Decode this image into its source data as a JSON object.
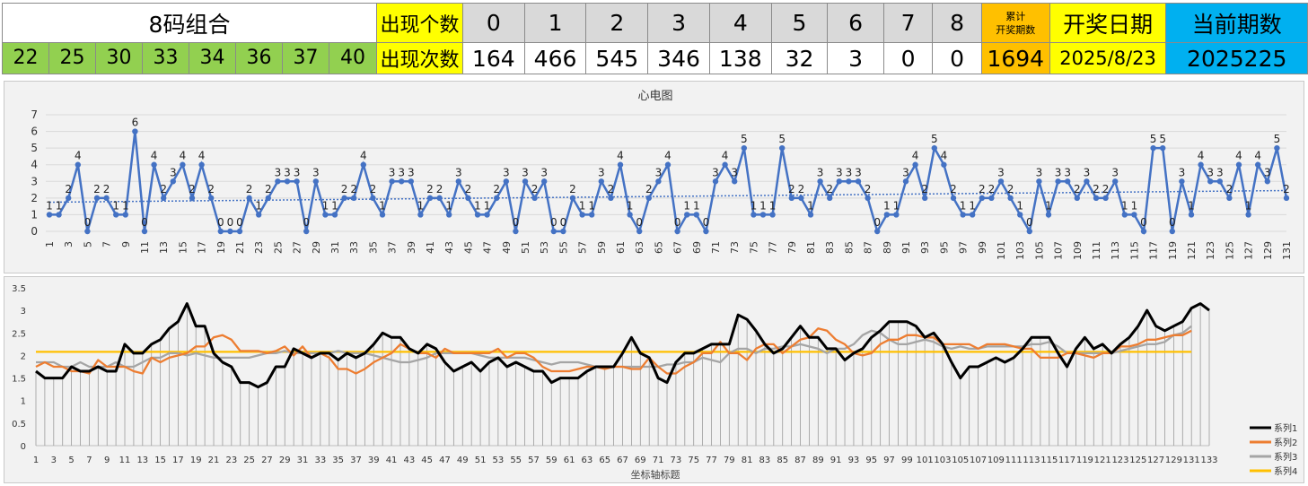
{
  "header": {
    "combo_label": "8码组合",
    "count_label": "出现个数",
    "times_label": "出现次数",
    "total_label_1": "累计",
    "total_label_2": "开奖期数",
    "date_label": "开奖日期",
    "period_label": "当前期数",
    "combo_numbers": [
      "22",
      "25",
      "30",
      "33",
      "34",
      "36",
      "37",
      "40"
    ],
    "count_headers": [
      "0",
      "1",
      "2",
      "3",
      "4",
      "5",
      "6",
      "7",
      "8"
    ],
    "times_values": [
      "164",
      "466",
      "545",
      "346",
      "138",
      "32",
      "3",
      "0",
      "0"
    ],
    "total_value": "1694",
    "date_value": "2025/8/23",
    "period_value": "2025225"
  },
  "chart_data": [
    {
      "type": "line",
      "title": "心电图",
      "x": [
        1,
        2,
        3,
        4,
        5,
        6,
        7,
        8,
        9,
        10,
        11,
        12,
        13,
        14,
        15,
        16,
        17,
        18,
        19,
        20,
        21,
        22,
        23,
        24,
        25,
        26,
        27,
        28,
        29,
        30,
        31,
        32,
        33,
        34,
        35,
        36,
        37,
        38,
        39,
        40,
        41,
        42,
        43,
        44,
        45,
        46,
        47,
        48,
        49,
        50,
        51,
        52,
        53,
        54,
        55,
        56,
        57,
        58,
        59,
        60,
        61,
        62,
        63,
        64,
        65,
        66,
        67,
        68,
        69,
        70,
        71,
        72,
        73,
        74,
        75,
        76,
        77,
        78,
        79,
        80,
        81,
        82,
        83,
        84,
        85,
        86,
        87,
        88,
        89,
        90,
        91,
        92,
        93,
        94,
        95,
        96,
        97,
        98,
        99,
        100,
        101,
        102,
        103,
        104,
        105,
        106,
        107,
        108,
        109,
        110,
        111,
        112,
        113,
        114,
        115,
        116,
        117,
        118,
        119,
        120,
        121,
        122,
        123,
        124,
        125,
        126,
        127,
        128,
        129,
        130,
        131
      ],
      "series": [
        {
          "values": [
            1,
            1,
            2,
            4,
            0,
            2,
            2,
            1,
            1,
            6,
            0,
            4,
            2,
            3,
            4,
            2,
            4,
            2,
            0,
            0,
            0,
            2,
            1,
            2,
            3,
            3,
            3,
            0,
            3,
            1,
            1,
            2,
            2,
            4,
            2,
            1,
            3,
            3,
            3,
            1,
            2,
            2,
            1,
            3,
            2,
            1,
            1,
            2,
            3,
            0,
            3,
            2,
            3,
            0,
            0,
            2,
            1,
            1,
            3,
            2,
            4,
            1,
            0,
            2,
            3,
            4,
            0,
            1,
            1,
            0,
            3,
            4,
            3,
            5,
            1,
            1,
            1,
            5,
            2,
            2,
            1,
            3,
            2,
            3,
            3,
            3,
            2,
            0,
            1,
            1,
            3,
            4,
            2,
            5,
            4,
            2,
            1,
            1,
            2,
            2,
            3,
            2,
            1,
            0,
            3,
            1,
            3,
            3,
            2,
            3,
            2,
            2,
            3,
            1,
            1,
            0,
            5,
            5,
            0,
            3,
            1,
            4,
            3,
            3,
            2,
            4,
            1,
            4,
            3,
            5,
            2
          ],
          "color": "#4472c4"
        }
      ],
      "trendline": {
        "style": "dotted linear",
        "color": "#4472c4",
        "from": 1.75,
        "to": 2.45
      },
      "data_labels": true,
      "ylim": [
        0,
        7
      ],
      "yticks": [
        0,
        1,
        2,
        3,
        4,
        5,
        6,
        7
      ],
      "xtick_step": 2,
      "grid": "horizontal"
    },
    {
      "type": "line",
      "xlabel": "坐标轴标题",
      "ylim": [
        0,
        3.5
      ],
      "yticks": [
        "0",
        "0.5",
        "1",
        "1.5",
        "2",
        "2.5",
        "3",
        "3.5"
      ],
      "xtick_step": 2,
      "drop_lines": true,
      "legend_position": "bottom-right",
      "series": [
        {
          "name": "系列1",
          "color": "#000000",
          "values": [
            1.65,
            1.5,
            1.5,
            1.5,
            1.75,
            1.65,
            1.65,
            1.75,
            1.65,
            1.65,
            2.25,
            2.05,
            2.05,
            2.25,
            2.35,
            2.6,
            2.75,
            3.15,
            2.65,
            2.65,
            2.05,
            1.85,
            1.75,
            1.4,
            1.4,
            1.3,
            1.4,
            1.75,
            1.75,
            2.15,
            2.05,
            1.95,
            2.05,
            2.05,
            1.9,
            2.05,
            1.95,
            2.05,
            2.25,
            2.5,
            2.4,
            2.4,
            2.15,
            2.05,
            2.25,
            2.15,
            1.85,
            1.65,
            1.75,
            1.85,
            1.65,
            1.85,
            1.95,
            1.75,
            1.85,
            1.75,
            1.65,
            1.65,
            1.4,
            1.5,
            1.5,
            1.5,
            1.65,
            1.75,
            1.75,
            1.75,
            2.05,
            2.4,
            2.05,
            1.95,
            1.5,
            1.4,
            1.85,
            2.05,
            2.05,
            2.15,
            2.25,
            2.25,
            2.25,
            2.9,
            2.8,
            2.55,
            2.25,
            2.05,
            2.15,
            2.4,
            2.65,
            2.4,
            2.4,
            2.15,
            2.15,
            1.9,
            2.05,
            2.15,
            2.4,
            2.55,
            2.75,
            2.75,
            2.75,
            2.65,
            2.4,
            2.5,
            2.25,
            1.85,
            1.5,
            1.75,
            1.75,
            1.85,
            1.95,
            1.85,
            1.95,
            2.15,
            2.4,
            2.4,
            2.4,
            2.05,
            1.75,
            2.15,
            2.4,
            2.15,
            2.25,
            2.05,
            2.25,
            2.4,
            2.65,
            3.0,
            2.65,
            2.55,
            2.65,
            2.75,
            3.05,
            3.15,
            3.0
          ]
        },
        {
          "name": "系列2",
          "color": "#ed7d31",
          "values": [
            1.75,
            1.85,
            1.75,
            1.75,
            1.65,
            1.65,
            1.6,
            1.9,
            1.75,
            1.75,
            1.75,
            1.65,
            1.6,
            1.95,
            1.85,
            1.95,
            2.0,
            2.05,
            2.2,
            2.2,
            2.4,
            2.45,
            2.35,
            2.1,
            2.1,
            2.1,
            2.05,
            2.1,
            2.2,
            2.0,
            2.2,
            1.95,
            2.05,
            1.95,
            1.7,
            1.7,
            1.6,
            1.7,
            1.85,
            1.95,
            2.05,
            2.25,
            2.15,
            2.05,
            2.05,
            1.95,
            2.15,
            2.05,
            2.05,
            2.05,
            2.05,
            2.05,
            2.15,
            1.95,
            2.05,
            2.05,
            1.95,
            1.75,
            1.65,
            1.65,
            1.65,
            1.7,
            1.75,
            1.75,
            1.7,
            1.75,
            1.75,
            1.7,
            1.7,
            1.95,
            1.75,
            1.6,
            1.6,
            1.75,
            1.85,
            2.05,
            2.05,
            2.3,
            2.05,
            2.05,
            1.9,
            2.15,
            2.25,
            2.25,
            2.05,
            2.2,
            2.35,
            2.4,
            2.6,
            2.55,
            2.35,
            2.25,
            2.05,
            2.0,
            2.05,
            2.25,
            2.35,
            2.35,
            2.45,
            2.45,
            2.4,
            2.4,
            2.25,
            2.25,
            2.25,
            2.25,
            2.15,
            2.25,
            2.25,
            2.25,
            2.2,
            2.15,
            2.15,
            1.95,
            1.95,
            1.95,
            2.05,
            2.05,
            2.0,
            1.95,
            2.05,
            2.05,
            2.2,
            2.2,
            2.25,
            2.35,
            2.35,
            2.4,
            2.45,
            2.45,
            2.55
          ]
        },
        {
          "name": "系列3",
          "color": "#a5a5a5",
          "values": [
            1.85,
            1.85,
            1.85,
            1.75,
            1.75,
            1.85,
            1.75,
            1.75,
            1.75,
            1.85,
            1.75,
            1.75,
            1.85,
            1.95,
            1.95,
            2.05,
            2.05,
            2.0,
            2.05,
            2.0,
            1.95,
            1.95,
            1.95,
            1.95,
            1.95,
            2.0,
            2.05,
            2.05,
            2.1,
            2.05,
            2.05,
            2.05,
            2.05,
            2.05,
            2.1,
            2.05,
            2.05,
            2.05,
            2.0,
            1.95,
            1.9,
            1.85,
            1.85,
            1.9,
            1.95,
            2.05,
            2.05,
            2.05,
            2.05,
            2.05,
            2.0,
            1.95,
            1.95,
            1.95,
            1.95,
            1.95,
            1.9,
            1.85,
            1.8,
            1.85,
            1.85,
            1.85,
            1.8,
            1.75,
            1.75,
            1.75,
            1.75,
            1.75,
            1.75,
            1.75,
            1.75,
            1.8,
            1.8,
            1.85,
            1.85,
            1.95,
            1.9,
            1.85,
            2.05,
            2.15,
            2.15,
            2.05,
            2.15,
            2.15,
            2.2,
            2.2,
            2.25,
            2.2,
            2.15,
            2.05,
            2.15,
            2.15,
            2.25,
            2.45,
            2.55,
            2.5,
            2.35,
            2.25,
            2.25,
            2.3,
            2.35,
            2.3,
            2.2,
            2.15,
            2.2,
            2.15,
            2.15,
            2.2,
            2.2,
            2.2,
            2.2,
            2.2,
            2.25,
            2.25,
            2.3,
            2.2,
            2.05,
            2.05,
            2.05,
            2.05,
            2.05,
            2.05,
            2.1,
            2.15,
            2.2,
            2.25,
            2.25,
            2.3,
            2.45,
            2.5,
            2.65
          ]
        },
        {
          "name": "系列4",
          "color": "#ffc000",
          "values": [
            2.08,
            2.08,
            2.08,
            2.08,
            2.08,
            2.08,
            2.08,
            2.08,
            2.08,
            2.08,
            2.08,
            2.08,
            2.08,
            2.08,
            2.08,
            2.08,
            2.08,
            2.08,
            2.08,
            2.08,
            2.08,
            2.08,
            2.08,
            2.08,
            2.08,
            2.08,
            2.08,
            2.08,
            2.08,
            2.08,
            2.08,
            2.08,
            2.08,
            2.08,
            2.08,
            2.08,
            2.08,
            2.08,
            2.08,
            2.08,
            2.08,
            2.08,
            2.08,
            2.08,
            2.08,
            2.08,
            2.08,
            2.08,
            2.08,
            2.08,
            2.08,
            2.08,
            2.08,
            2.08,
            2.08,
            2.08,
            2.08,
            2.08,
            2.08,
            2.08,
            2.08,
            2.08,
            2.08,
            2.08,
            2.08,
            2.08,
            2.08,
            2.08,
            2.08,
            2.08,
            2.08,
            2.08,
            2.08,
            2.08,
            2.08,
            2.08,
            2.08,
            2.08,
            2.08,
            2.08,
            2.08,
            2.08,
            2.08,
            2.08,
            2.08,
            2.08,
            2.08,
            2.08,
            2.08,
            2.08,
            2.08,
            2.08,
            2.08,
            2.08,
            2.08,
            2.08,
            2.08,
            2.08,
            2.08,
            2.08,
            2.08,
            2.08,
            2.08,
            2.08,
            2.08,
            2.08,
            2.08,
            2.08,
            2.08,
            2.08,
            2.08,
            2.08,
            2.08,
            2.08,
            2.08,
            2.08,
            2.08,
            2.08,
            2.08,
            2.08,
            2.08,
            2.08,
            2.08,
            2.08,
            2.08,
            2.08,
            2.08,
            2.08,
            2.08,
            2.08,
            2.08
          ]
        }
      ]
    }
  ]
}
